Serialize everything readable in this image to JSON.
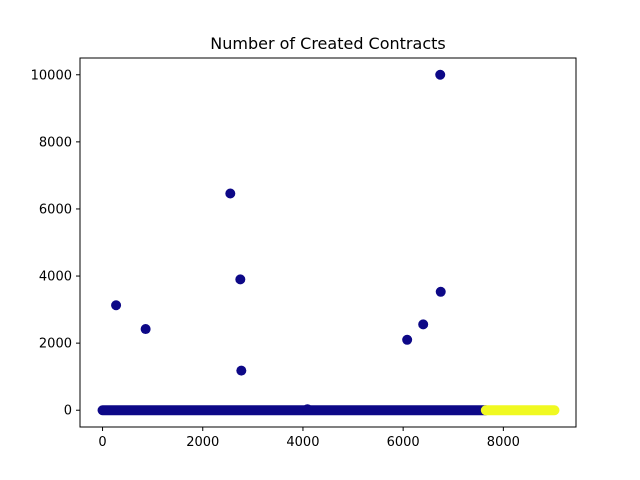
{
  "chart_data": {
    "type": "scatter",
    "title": "Number of Created Contracts",
    "xlabel": "",
    "ylabel": "",
    "xlim": [
      -450,
      9450
    ],
    "ylim": [
      -500,
      10500
    ],
    "xticks": [
      0,
      2000,
      4000,
      6000,
      8000
    ],
    "yticks": [
      0,
      2000,
      4000,
      6000,
      8000,
      10000
    ],
    "grid": false,
    "colors": {
      "cluster_0": "#0d0887",
      "cluster_1": "#f0f921"
    },
    "series": [
      {
        "cluster": "cluster_0",
        "band_x": [
          0,
          7650
        ],
        "band_y": 0,
        "points": [
          [
            270,
            3130
          ],
          [
            860,
            2420
          ],
          [
            2550,
            6460
          ],
          [
            2750,
            3900
          ],
          [
            2770,
            1180
          ],
          [
            4090,
            30
          ],
          [
            6080,
            2100
          ],
          [
            6400,
            2560
          ],
          [
            6740,
            10000
          ],
          [
            6750,
            3530
          ]
        ]
      },
      {
        "cluster": "cluster_1",
        "band_x": [
          7650,
          9020
        ],
        "band_y": 0,
        "points": []
      }
    ]
  }
}
